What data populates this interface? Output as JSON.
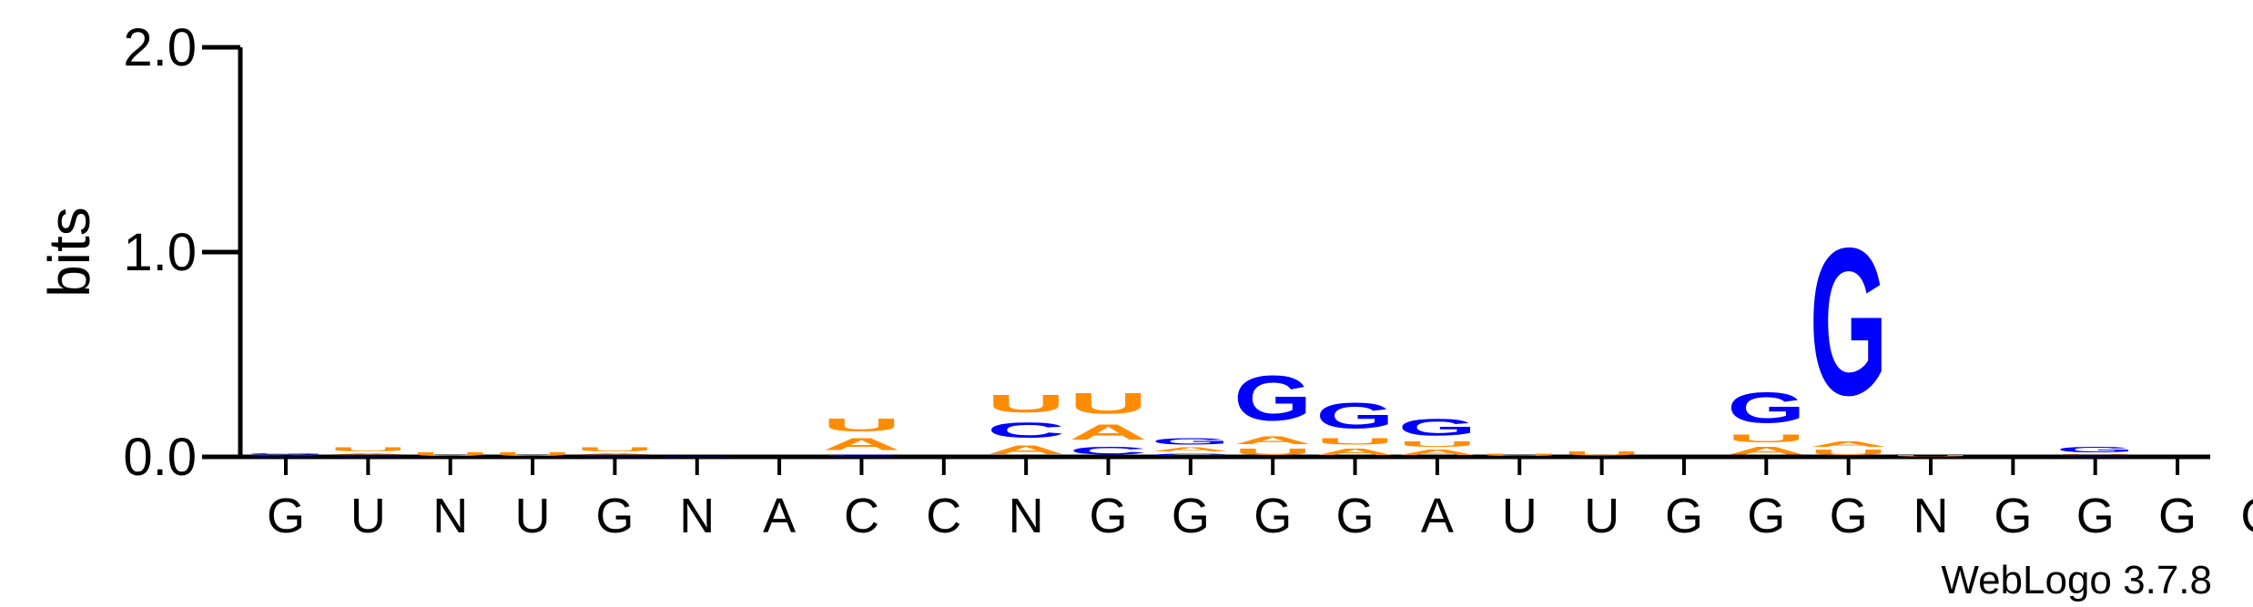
{
  "colors": {
    "A": "#ff8c00",
    "U": "#ff8c00",
    "C": "#0000ff",
    "G": "#0000ff",
    "axis": "#000000"
  },
  "credit": "WebLogo 3.7.8",
  "chart_data": {
    "type": "sequence-logo",
    "ylabel": "bits",
    "ylim": [
      0,
      2.0
    ],
    "yticks": [
      "0.0",
      "1.0",
      "2.0"
    ],
    "positions": [
      {
        "label": "G",
        "stack": [
          {
            "letter": "C",
            "bits": 0.005
          },
          {
            "letter": "A",
            "bits": 0.005
          },
          {
            "letter": "G",
            "bits": 0.01
          }
        ]
      },
      {
        "label": "U",
        "stack": [
          {
            "letter": "C",
            "bits": 0.01
          },
          {
            "letter": "A",
            "bits": 0.01
          },
          {
            "letter": "U",
            "bits": 0.03
          }
        ]
      },
      {
        "label": "N",
        "stack": [
          {
            "letter": "U",
            "bits": 0.025
          }
        ]
      },
      {
        "label": "U",
        "stack": [
          {
            "letter": "U",
            "bits": 0.025
          }
        ]
      },
      {
        "label": "G",
        "stack": [
          {
            "letter": "C",
            "bits": 0.01
          },
          {
            "letter": "A",
            "bits": 0.01
          },
          {
            "letter": "U",
            "bits": 0.03
          }
        ]
      },
      {
        "label": "N",
        "stack": [
          {
            "letter": "C",
            "bits": 0.005
          }
        ]
      },
      {
        "label": "A",
        "stack": []
      },
      {
        "label": "C",
        "stack": [
          {
            "letter": "C",
            "bits": 0.015
          },
          {
            "letter": "A",
            "bits": 0.09
          },
          {
            "letter": "U",
            "bits": 0.1
          }
        ]
      },
      {
        "label": "C",
        "stack": []
      },
      {
        "label": "N",
        "stack": [
          {
            "letter": "A",
            "bits": 0.07
          },
          {
            "letter": "C",
            "bits": 0.12
          },
          {
            "letter": "U",
            "bits": 0.14
          }
        ]
      },
      {
        "label": "G",
        "stack": [
          {
            "letter": "C",
            "bits": 0.06
          },
          {
            "letter": "A",
            "bits": 0.12
          },
          {
            "letter": "U",
            "bits": 0.16
          }
        ]
      },
      {
        "label": "G",
        "stack": [
          {
            "letter": "C",
            "bits": 0.02
          },
          {
            "letter": "A",
            "bits": 0.03
          },
          {
            "letter": "G",
            "bits": 0.05
          }
        ]
      },
      {
        "label": "G",
        "stack": [
          {
            "letter": "U",
            "bits": 0.05
          },
          {
            "letter": "A",
            "bits": 0.06
          },
          {
            "letter": "G",
            "bits": 0.35
          }
        ]
      },
      {
        "label": "G",
        "stack": [
          {
            "letter": "A",
            "bits": 0.05
          },
          {
            "letter": "U",
            "bits": 0.05
          },
          {
            "letter": "G",
            "bits": 0.2
          }
        ]
      },
      {
        "label": "A",
        "stack": [
          {
            "letter": "A",
            "bits": 0.04
          },
          {
            "letter": "U",
            "bits": 0.04
          },
          {
            "letter": "G",
            "bits": 0.13
          }
        ]
      },
      {
        "label": "U",
        "stack": [
          {
            "letter": "U",
            "bits": 0.02
          }
        ]
      },
      {
        "label": "U",
        "stack": [
          {
            "letter": "U",
            "bits": 0.03
          }
        ]
      },
      {
        "label": "G",
        "stack": []
      },
      {
        "label": "G",
        "stack": [
          {
            "letter": "A",
            "bits": 0.06
          },
          {
            "letter": "U",
            "bits": 0.06
          },
          {
            "letter": "G",
            "bits": 0.24
          }
        ]
      },
      {
        "label": "G",
        "stack": [
          {
            "letter": "U",
            "bits": 0.04
          },
          {
            "letter": "A",
            "bits": 0.04
          },
          {
            "letter": "G",
            "bits": 1.15
          }
        ]
      },
      {
        "label": "N",
        "stack": [
          {
            "letter": "U",
            "bits": 0.01
          }
        ]
      },
      {
        "label": "G",
        "stack": []
      },
      {
        "label": "G",
        "stack": [
          {
            "letter": "C",
            "bits": 0.01
          },
          {
            "letter": "U",
            "bits": 0.005
          },
          {
            "letter": "G",
            "bits": 0.04
          }
        ]
      },
      {
        "label": "G",
        "stack": []
      },
      {
        "label": "G",
        "stack": []
      }
    ]
  }
}
